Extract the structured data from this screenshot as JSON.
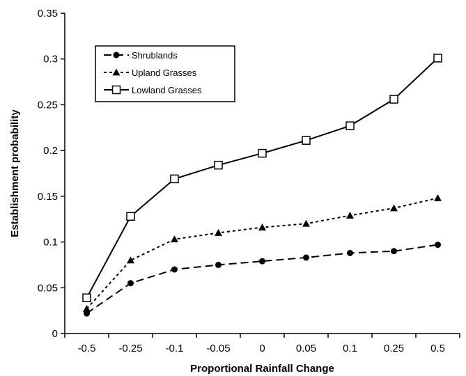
{
  "chart_data": {
    "type": "line",
    "title": "",
    "xlabel": "Proportional Rainfall Change",
    "ylabel": "Establishment probability",
    "categories": [
      "-0.5",
      "-0.25",
      "-0.1",
      "-0.05",
      "0",
      "0.05",
      "0.1",
      "0.25",
      "0.5"
    ],
    "ylim": [
      0,
      0.35
    ],
    "yticks": [
      "0",
      "0.05",
      "0.1",
      "0.15",
      "0.2",
      "0.25",
      "0.3",
      "0.35"
    ],
    "grid": false,
    "legend_position": "top-left",
    "series": [
      {
        "name": "Shrublands",
        "marker": "circle",
        "line_style": "long-dash",
        "color": "#000000",
        "values": [
          0.022,
          0.055,
          0.07,
          0.075,
          0.079,
          0.083,
          0.088,
          0.09,
          0.097
        ]
      },
      {
        "name": "Upland Grasses",
        "marker": "triangle",
        "line_style": "short-dash",
        "color": "#000000",
        "values": [
          0.027,
          0.08,
          0.103,
          0.11,
          0.116,
          0.12,
          0.129,
          0.137,
          0.148
        ]
      },
      {
        "name": "Lowland Grasses",
        "marker": "open-square",
        "line_style": "solid",
        "color": "#000000",
        "values": [
          0.039,
          0.128,
          0.169,
          0.184,
          0.197,
          0.211,
          0.227,
          0.256,
          0.301
        ]
      }
    ]
  }
}
